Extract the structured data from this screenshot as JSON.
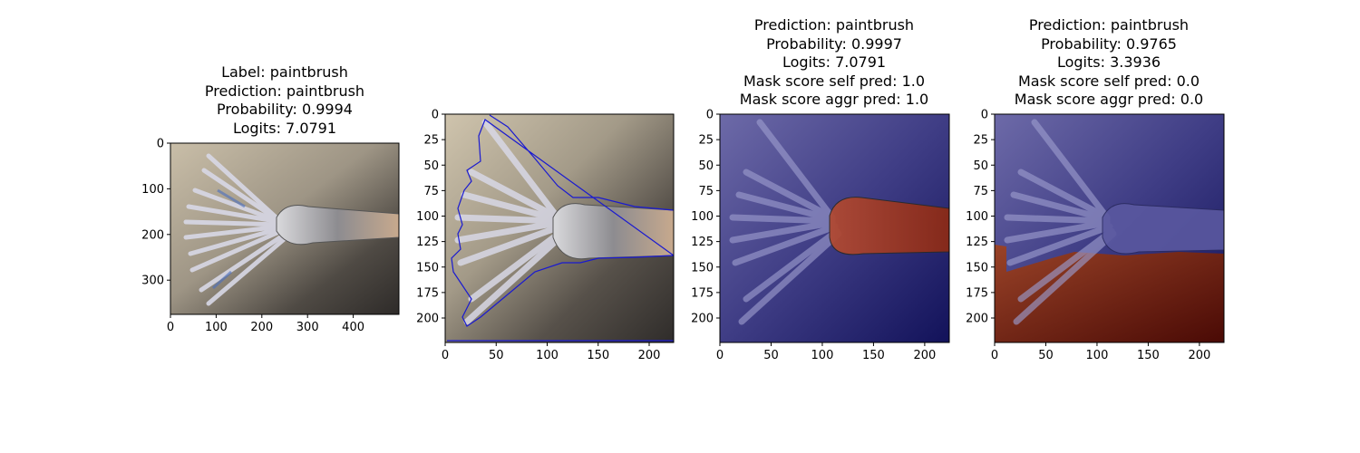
{
  "figure": {
    "panels": [
      {
        "title_lines": [
          "Label: paintbrush",
          "Prediction: paintbrush",
          "Probability: 0.9994",
          "Logits: 7.0791"
        ],
        "x_ticks": [
          "0",
          "100",
          "200",
          "300",
          "400"
        ],
        "y_ticks": [
          "0",
          "100",
          "200",
          "300"
        ],
        "x_range": [
          0,
          500
        ],
        "y_range": [
          0,
          375
        ],
        "image_desc": "photo"
      },
      {
        "title_lines": [],
        "x_ticks": [
          "0",
          "50",
          "100",
          "150",
          "200"
        ],
        "y_ticks": [
          "0",
          "25",
          "50",
          "75",
          "100",
          "125",
          "150",
          "175",
          "200"
        ],
        "x_range": [
          0,
          224
        ],
        "y_range": [
          0,
          224
        ],
        "image_desc": "contour"
      },
      {
        "title_lines": [
          "Prediction: paintbrush",
          "Probability: 0.9997",
          "Logits: 7.0791",
          "Mask score self pred: 1.0",
          "Mask score aggr pred: 1.0"
        ],
        "x_ticks": [
          "0",
          "50",
          "100",
          "150",
          "200"
        ],
        "y_ticks": [
          "0",
          "25",
          "50",
          "75",
          "100",
          "125",
          "150",
          "175",
          "200"
        ],
        "x_range": [
          0,
          224
        ],
        "y_range": [
          0,
          224
        ],
        "image_desc": "mask-handle"
      },
      {
        "title_lines": [
          "Prediction: paintbrush",
          "Probability: 0.9765",
          "Logits: 3.3936",
          "Mask score self pred: 0.0",
          "Mask score aggr pred: 0.0"
        ],
        "x_ticks": [
          "0",
          "50",
          "100",
          "150",
          "200"
        ],
        "y_ticks": [
          "0",
          "25",
          "50",
          "75",
          "100",
          "125",
          "150",
          "175",
          "200"
        ],
        "x_range": [
          0,
          224
        ],
        "y_range": [
          0,
          224
        ],
        "image_desc": "mask-background"
      }
    ],
    "colors": {
      "photo_bg": "#8a8173",
      "mask_blue": "#23236e",
      "mask_red": "#8a2412",
      "contour": "#1a1ad0"
    }
  }
}
